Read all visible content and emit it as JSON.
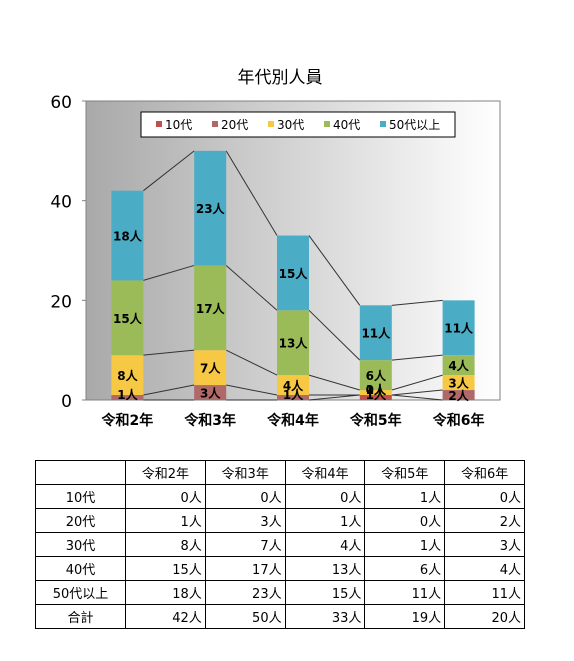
{
  "chart_data": {
    "type": "bar",
    "stacked": true,
    "title": "年代別人員",
    "categories": [
      "令和2年",
      "令和3年",
      "令和4年",
      "令和5年",
      "令和6年"
    ],
    "ylim": [
      0,
      60
    ],
    "yticks": [
      "0",
      "20",
      "40",
      "60"
    ],
    "legend_position": "top",
    "unit_suffix": "人",
    "series": [
      {
        "name": "10代",
        "values": [
          0,
          0,
          0,
          1,
          0
        ],
        "color": "#c0504d"
      },
      {
        "name": "20代",
        "values": [
          1,
          3,
          1,
          0,
          2
        ],
        "color": "#b06868"
      },
      {
        "name": "30代",
        "values": [
          8,
          7,
          4,
          1,
          3
        ],
        "color": "#f7c843"
      },
      {
        "name": "40代",
        "values": [
          15,
          17,
          13,
          6,
          4
        ],
        "color": "#9bbb59"
      },
      {
        "name": "50代以上",
        "values": [
          18,
          23,
          15,
          11,
          11
        ],
        "color": "#4bacc6"
      }
    ],
    "bar_labels": [
      [
        "",
        "",
        "",
        "1人",
        ""
      ],
      [
        "1人",
        "3人",
        "1人",
        "0人",
        "2人"
      ],
      [
        "8人",
        "7人",
        "4人",
        "1人",
        "3人"
      ],
      [
        "15人",
        "17人",
        "13人",
        "6人",
        "4人"
      ],
      [
        "18人",
        "23人",
        "15人",
        "11人",
        "11人"
      ]
    ]
  },
  "table": {
    "headers": [
      "",
      "令和2年",
      "令和3年",
      "令和4年",
      "令和5年",
      "令和6年"
    ],
    "rows": [
      {
        "label": "10代",
        "cells": [
          "0人",
          "0人",
          "0人",
          "1人",
          "0人"
        ]
      },
      {
        "label": "20代",
        "cells": [
          "1人",
          "3人",
          "1人",
          "0人",
          "2人"
        ]
      },
      {
        "label": "30代",
        "cells": [
          "8人",
          "7人",
          "4人",
          "1人",
          "3人"
        ]
      },
      {
        "label": "40代",
        "cells": [
          "15人",
          "17人",
          "13人",
          "6人",
          "4人"
        ]
      },
      {
        "label": "50代以上",
        "cells": [
          "18人",
          "23人",
          "15人",
          "11人",
          "11人"
        ]
      },
      {
        "label": "合計",
        "cells": [
          "42人",
          "50人",
          "33人",
          "19人",
          "20人"
        ]
      }
    ]
  }
}
